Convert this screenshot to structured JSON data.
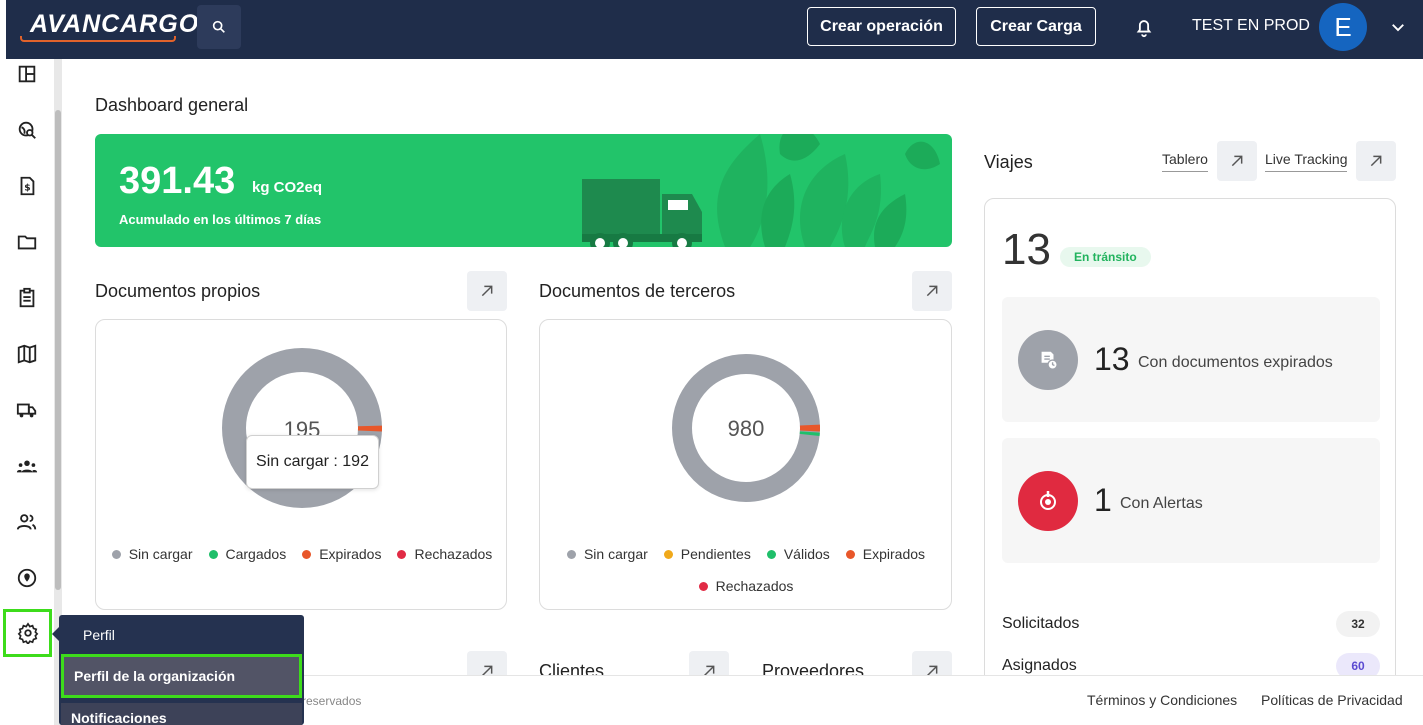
{
  "header": {
    "logo": "AVANCARGO",
    "create_operation": "Crear operación",
    "create_load": "Crear Carga",
    "user_name": "TEST EN PROD",
    "avatar_initial": "E"
  },
  "dropdown": {
    "title": "Perfil",
    "items": [
      "Perfil de la organización",
      "Notificaciones"
    ]
  },
  "main": {
    "page_title": "Dashboard general",
    "co2": {
      "value": "391.43",
      "unit": "kg CO2eq",
      "subtitle": "Acumulado en los últimos 7 días"
    },
    "documentos_propios": {
      "title": "Documentos propios",
      "total": "195",
      "tooltip": "Sin cargar : 192",
      "legend": [
        {
          "label": "Sin cargar",
          "color": "#9ea2aa"
        },
        {
          "label": "Cargados",
          "color": "#1fbf6a"
        },
        {
          "label": "Expirados",
          "color": "#e8572a"
        },
        {
          "label": "Rechazados",
          "color": "#e12b45"
        }
      ]
    },
    "documentos_terceros": {
      "title": "Documentos de terceros",
      "total": "980",
      "legend": [
        {
          "label": "Sin cargar",
          "color": "#9ea2aa"
        },
        {
          "label": "Pendientes",
          "color": "#f0a91b"
        },
        {
          "label": "Válidos",
          "color": "#1fbf6a"
        },
        {
          "label": "Expirados",
          "color": "#e8572a"
        },
        {
          "label": "Rechazados",
          "color": "#e12b45"
        }
      ]
    },
    "bottom_sections": {
      "clientes": "Clientes",
      "proveedores": "Proveedores"
    }
  },
  "viajes": {
    "title": "Viajes",
    "link_tablero": "Tablero",
    "link_live": "Live Tracking",
    "total": "13",
    "status_badge": "En tránsito",
    "expired_docs": {
      "count": "13",
      "label": "Con documentos expirados"
    },
    "alerts": {
      "count": "1",
      "label": "Con Alertas"
    },
    "rows": [
      {
        "label": "Solicitados",
        "count": "32"
      },
      {
        "label": "Asignados",
        "count": "60"
      }
    ]
  },
  "footer": {
    "copy": "reservados",
    "terms": "Términos y Condiciones",
    "privacy": "Políticas de Privacidad"
  }
}
